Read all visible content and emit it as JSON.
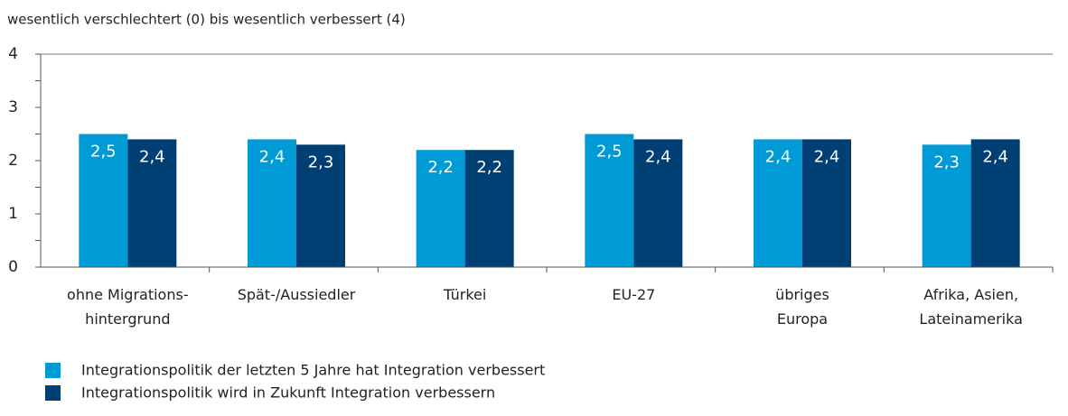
{
  "chart_data": {
    "type": "bar",
    "title": "wesentlich verschlechtert (0) bis wesentlich verbessert (4)",
    "categories": [
      [
        "ohne Migrations-",
        "hintergrund"
      ],
      [
        "Spät-/Aussiedler"
      ],
      [
        "Türkei"
      ],
      [
        "EU-27"
      ],
      [
        "übriges",
        "Europa"
      ],
      [
        "Afrika, Asien,",
        "Lateinamerika"
      ]
    ],
    "series": [
      {
        "name": "Integrationspolitik der letzten 5 Jahre hat Integration verbessert",
        "color": "#009ad6",
        "values": [
          2.5,
          2.4,
          2.2,
          2.5,
          2.4,
          2.3
        ],
        "value_labels": [
          "2,5",
          "2,4",
          "2,2",
          "2,5",
          "2,4",
          "2,3"
        ]
      },
      {
        "name": "Integrationspolitik wird in Zukunft Integration verbessern",
        "color": "#003f74",
        "values": [
          2.4,
          2.3,
          2.2,
          2.4,
          2.4,
          2.4
        ],
        "value_labels": [
          "2,4",
          "2,3",
          "2,2",
          "2,4",
          "2,4",
          "2,4"
        ]
      }
    ],
    "ylim": [
      0,
      4
    ],
    "yticks": [
      0,
      1,
      2,
      3,
      4
    ],
    "yticks_minor": [
      0.5,
      1.5,
      2.5,
      3.5
    ]
  }
}
